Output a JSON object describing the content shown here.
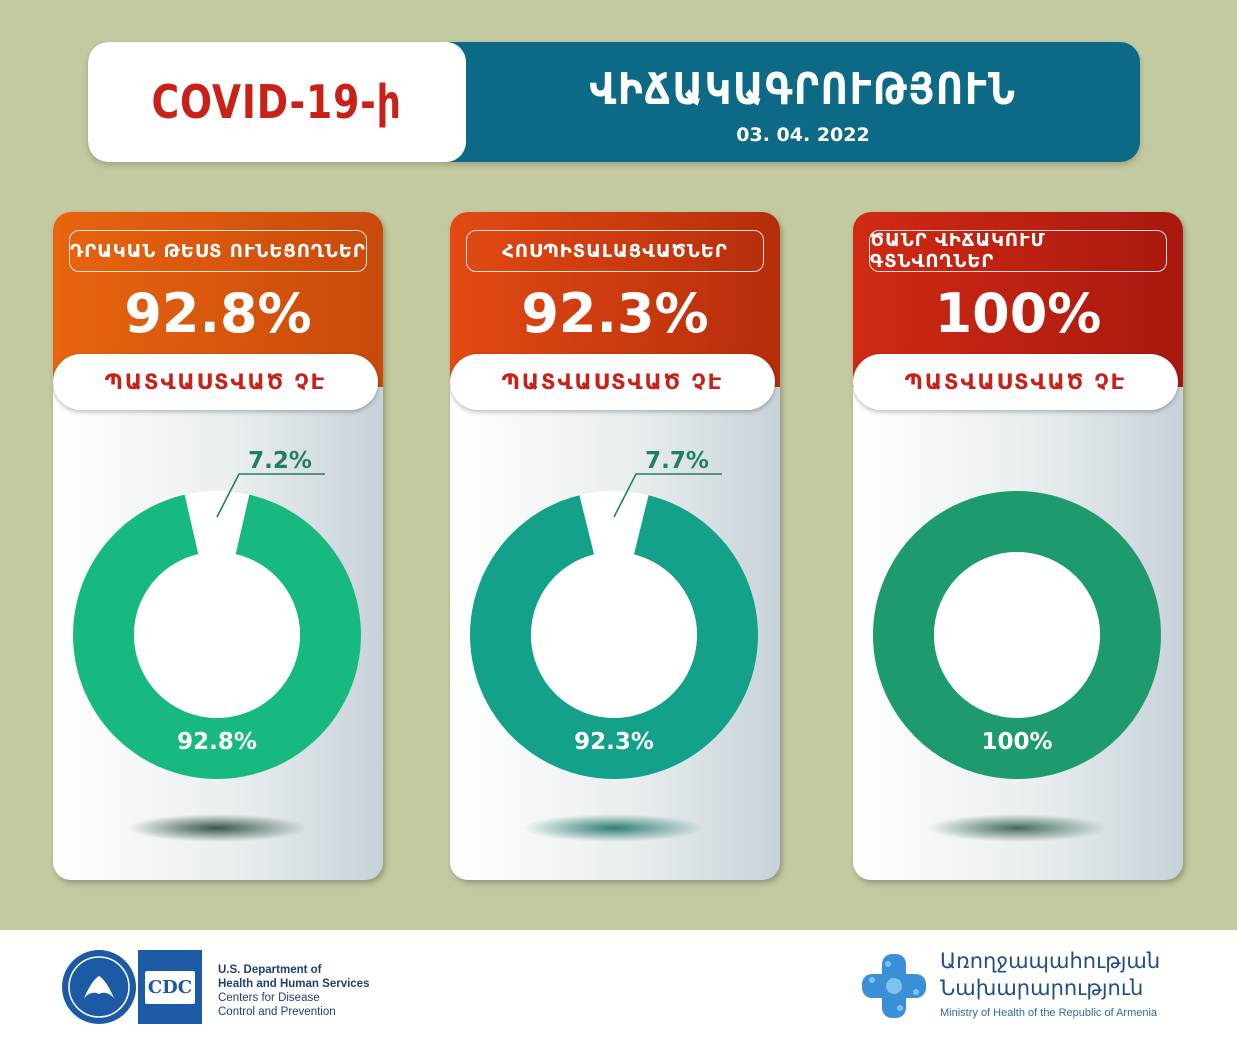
{
  "header": {
    "left_title": "COVID-19-ի",
    "right_title": "ՎԻՃԱԿԱԳՐՈՒԹՅՈՒՆ",
    "date": "03. 04. 2022"
  },
  "cards": [
    {
      "label": "ԴՐԱԿԱՆ ԹԵՍՏ ՈՒՆԵՑՈՂՆԵՐ",
      "big_value": "92.8%",
      "pill": "ՊԱՏՎԱՍՏՎԱԾ ՉԷ",
      "donut_label": "92.8%",
      "small_label": "7.2%"
    },
    {
      "label": "ՀՈՍՊԻՏԱԼԱՑՎԱԾՆԵՐ",
      "big_value": "92.3%",
      "pill": "ՊԱՏՎԱՍՏՎԱԾ ՉԷ",
      "donut_label": "92.3%",
      "small_label": "7.7%"
    },
    {
      "label": "ԾԱՆՐ ՎԻՃԱԿՈՒՄ ԳՏՆՎՈՂՆԵՐ",
      "big_value": "100%",
      "pill": "ՊԱՏՎԱՍՏՎԱԾ ՉԷ",
      "donut_label": "100%",
      "small_label": ""
    }
  ],
  "chart_data": [
    {
      "type": "pie",
      "categories": [
        "ՊԱՏՎԱՍՏՎԱԾ ՉԷ",
        ""
      ],
      "values": [
        92.8,
        7.2
      ],
      "title": "ԴՐԱԿԱՆ ԹԵՍՏ ՈՒՆԵՑՈՂՆԵՐ",
      "colors": [
        "#17b97f",
        "#ffffff"
      ]
    },
    {
      "type": "pie",
      "categories": [
        "ՊԱՏՎԱՍՏՎԱԾ ՉԷ",
        ""
      ],
      "values": [
        92.3,
        7.7
      ],
      "title": "ՀՈՍՊԻՏԱԼԱՑՎԱԾՆԵՐ",
      "colors": [
        "#13a18a",
        "#ffffff"
      ]
    },
    {
      "type": "pie",
      "categories": [
        "ՊԱՏՎԱՍՏՎԱԾ ՉԷ"
      ],
      "values": [
        100
      ],
      "title": "ԾԱՆՐ ՎԻՃԱԿՈՒՄ ԳՏՆՎՈՂՆԵՐ",
      "colors": [
        "#1e9b6c"
      ]
    }
  ],
  "footer": {
    "cdc_logo": "CDC",
    "hhs_line1": "U.S. Department of",
    "hhs_line2": "Health and Human Services",
    "hhs_line3": "Centers for Disease",
    "hhs_line4": "Control and Prevention",
    "moh_line1": "Առողջապահության",
    "moh_line2": "Նախարարություն",
    "moh_line3": "Ministry of Health of the Republic of Armenia"
  },
  "colors": {
    "background": "#c3c9a0",
    "banner": "#0d6a86",
    "accent_red": "#c8211a"
  }
}
